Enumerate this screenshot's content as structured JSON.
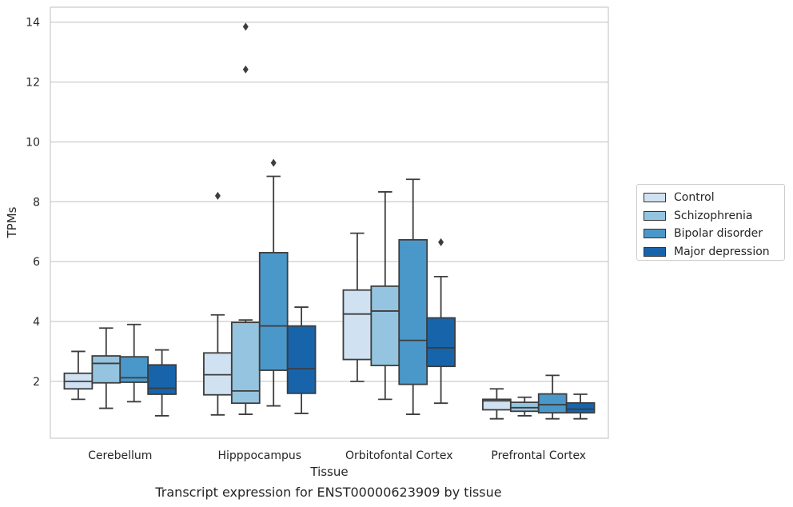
{
  "chart_data": {
    "type": "box",
    "title": "Transcript expression for ENST00000623909 by tissue",
    "xlabel": "Tissue",
    "ylabel": "TPMs",
    "ylim": [
      0.1,
      14.5
    ],
    "yticks": [
      2,
      4,
      6,
      8,
      10,
      12,
      14
    ],
    "grid": "horizontal",
    "legend_position": "right",
    "categories": [
      "Cerebellum",
      "Hipppocampus",
      "Orbitofontal Cortex",
      "Prefrontal Cortex"
    ],
    "series": [
      {
        "name": "Control",
        "color": "#d0e1f2",
        "boxes": [
          {
            "whisker_low": 1.4,
            "q1": 1.75,
            "median": 2.0,
            "q3": 2.27,
            "whisker_high": 3.0,
            "outliers": []
          },
          {
            "whisker_low": 0.88,
            "q1": 1.55,
            "median": 2.22,
            "q3": 2.95,
            "whisker_high": 4.22,
            "outliers": [
              8.2
            ]
          },
          {
            "whisker_low": 2.0,
            "q1": 2.73,
            "median": 4.25,
            "q3": 5.05,
            "whisker_high": 6.95,
            "outliers": []
          },
          {
            "whisker_low": 0.75,
            "q1": 1.05,
            "median": 1.35,
            "q3": 1.4,
            "whisker_high": 1.75,
            "outliers": []
          }
        ]
      },
      {
        "name": "Schizophrenia",
        "color": "#94c4df",
        "boxes": [
          {
            "whisker_low": 1.1,
            "q1": 1.95,
            "median": 2.6,
            "q3": 2.85,
            "whisker_high": 3.78,
            "outliers": []
          },
          {
            "whisker_low": 0.9,
            "q1": 1.27,
            "median": 1.68,
            "q3": 3.97,
            "whisker_high": 4.05,
            "outliers": [
              12.42,
              13.85
            ]
          },
          {
            "whisker_low": 1.4,
            "q1": 2.53,
            "median": 4.35,
            "q3": 5.18,
            "whisker_high": 8.33,
            "outliers": []
          },
          {
            "whisker_low": 0.85,
            "q1": 1.0,
            "median": 1.12,
            "q3": 1.3,
            "whisker_high": 1.47,
            "outliers": []
          }
        ]
      },
      {
        "name": "Bipolar disorder",
        "color": "#4a98c9",
        "boxes": [
          {
            "whisker_low": 1.32,
            "q1": 1.97,
            "median": 2.12,
            "q3": 2.82,
            "whisker_high": 3.9,
            "outliers": []
          },
          {
            "whisker_low": 1.18,
            "q1": 2.37,
            "median": 3.85,
            "q3": 6.3,
            "whisker_high": 8.85,
            "outliers": [
              9.3
            ]
          },
          {
            "whisker_low": 0.9,
            "q1": 1.9,
            "median": 3.37,
            "q3": 6.73,
            "whisker_high": 8.75,
            "outliers": []
          },
          {
            "whisker_low": 0.75,
            "q1": 0.95,
            "median": 1.22,
            "q3": 1.58,
            "whisker_high": 2.2,
            "outliers": []
          }
        ]
      },
      {
        "name": "Major depression",
        "color": "#1764ab",
        "boxes": [
          {
            "whisker_low": 0.85,
            "q1": 1.57,
            "median": 1.77,
            "q3": 2.55,
            "whisker_high": 3.05,
            "outliers": []
          },
          {
            "whisker_low": 0.93,
            "q1": 1.6,
            "median": 2.42,
            "q3": 3.85,
            "whisker_high": 4.48,
            "outliers": []
          },
          {
            "whisker_low": 1.27,
            "q1": 2.5,
            "median": 3.12,
            "q3": 4.12,
            "whisker_high": 5.5,
            "outliers": [
              6.65
            ]
          },
          {
            "whisker_low": 0.75,
            "q1": 0.95,
            "median": 1.07,
            "q3": 1.28,
            "whisker_high": 1.57,
            "outliers": []
          }
        ]
      }
    ]
  }
}
